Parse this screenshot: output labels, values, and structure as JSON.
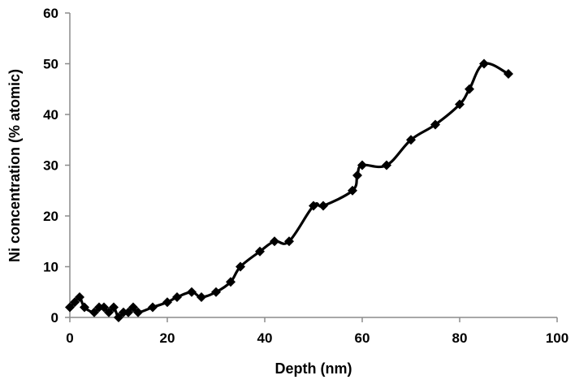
{
  "chart_data": {
    "type": "line",
    "title": "",
    "xlabel": "Depth  (nm)",
    "ylabel": "Ni  concentration (% atomic)",
    "xlim": [
      0,
      100
    ],
    "ylim": [
      0,
      60
    ],
    "xticks": [
      0,
      20,
      40,
      60,
      80,
      100
    ],
    "yticks": [
      0,
      10,
      20,
      30,
      40,
      50,
      60
    ],
    "grid": false,
    "legend": "none",
    "marker": "diamond",
    "line_color": "#000000",
    "series": [
      {
        "x": [
          0,
          1,
          2,
          3,
          5,
          6,
          7,
          8,
          9,
          10,
          11,
          12,
          13,
          14,
          17,
          20,
          22,
          25,
          27,
          30,
          33,
          35,
          39,
          42,
          45,
          50,
          52,
          58,
          59,
          60,
          65,
          70,
          75,
          80,
          82,
          85,
          90
        ],
        "y": [
          2,
          3,
          4,
          2,
          1,
          2,
          2,
          1,
          2,
          0,
          1,
          1,
          2,
          1,
          2,
          3,
          4,
          5,
          4,
          5,
          7,
          10,
          13,
          15,
          15,
          22,
          22,
          25,
          28,
          30,
          30,
          35,
          38,
          42,
          45,
          50,
          48
        ]
      }
    ]
  }
}
